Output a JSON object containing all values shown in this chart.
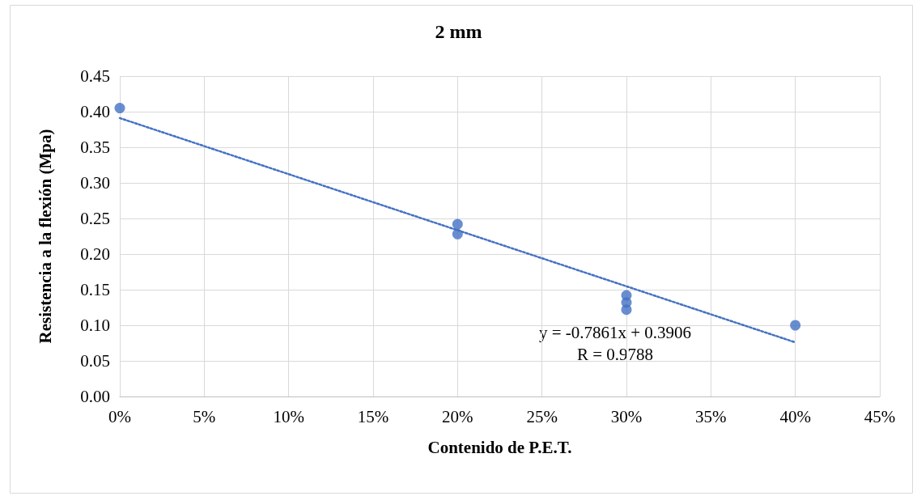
{
  "chart_data": {
    "type": "scatter",
    "title": "2 mm",
    "xlabel": "Contenido de P.E.T.",
    "ylabel": "Resistencia a la flexión (Mpa)",
    "series": [
      {
        "type": "scatter",
        "color": "#4472c4",
        "marker": "circle",
        "x": [
          0,
          0.2,
          0.2,
          0.3,
          0.3,
          0.3,
          0.4
        ],
        "values": [
          0.405,
          0.242,
          0.228,
          0.142,
          0.132,
          0.122,
          0.1
        ]
      },
      {
        "type": "line",
        "color": "#4472c4",
        "line_style": "dotted",
        "marker": "none",
        "x": [
          0,
          0.4
        ],
        "values": [
          0.391,
          0.076
        ]
      }
    ],
    "annotations": [
      "y = -0.7861x + 0.3906",
      "R = 0.9788"
    ],
    "xlim": [
      0,
      0.45
    ],
    "xticks": [
      {
        "value": 0,
        "label": "0%"
      },
      {
        "value": 0.05,
        "label": "5%"
      },
      {
        "value": 0.1,
        "label": "10%"
      },
      {
        "value": 0.15,
        "label": "15%"
      },
      {
        "value": 0.2,
        "label": "20%"
      },
      {
        "value": 0.25,
        "label": "25%"
      },
      {
        "value": 0.3,
        "label": "30%"
      },
      {
        "value": 0.35,
        "label": "35%"
      },
      {
        "value": 0.4,
        "label": "40%"
      },
      {
        "value": 0.45,
        "label": "45%"
      }
    ],
    "ylim": [
      0,
      0.45
    ],
    "yticks": [
      {
        "value": 0,
        "label": "0.00"
      },
      {
        "value": 0.05,
        "label": "0.05"
      },
      {
        "value": 0.1,
        "label": "0.10"
      },
      {
        "value": 0.15,
        "label": "0.15"
      },
      {
        "value": 0.2,
        "label": "0.20"
      },
      {
        "value": 0.25,
        "label": "0.25"
      },
      {
        "value": 0.3,
        "label": "0.30"
      },
      {
        "value": 0.35,
        "label": "0.35"
      },
      {
        "value": 0.4,
        "label": "0.40"
      },
      {
        "value": 0.45,
        "label": "0.45"
      }
    ],
    "grid": true
  }
}
